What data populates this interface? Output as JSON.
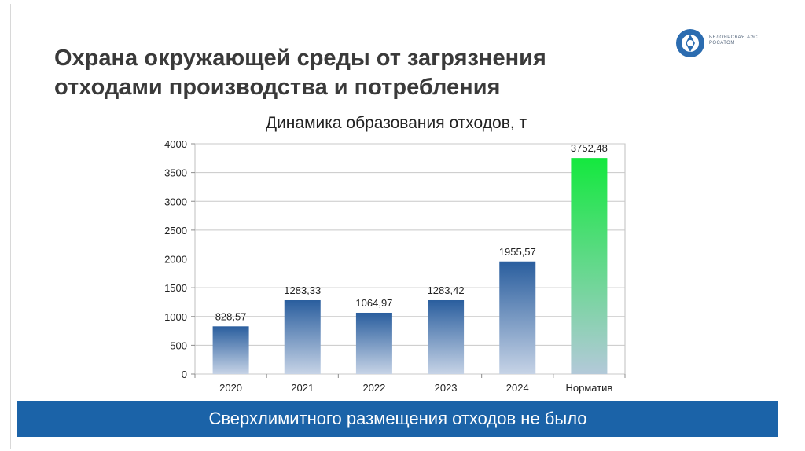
{
  "slide": {
    "title_line1": "Охрана окружающей среды от загрязнения",
    "title_line2": "отходами производства и потребления",
    "banner_text": "Сверхлимитного размещения отходов не было",
    "logo_text": "БЕЛОЯРСКАЯ АЭС РОСАТОМ"
  },
  "colors": {
    "banner": "#1b63a8",
    "bar_blue_top": "#2a5e9e",
    "bar_blue_bottom": "#c6d3e6",
    "bar_green_top": "#14e83e",
    "bar_green_bottom": "#b3c9d9"
  },
  "chart_data": {
    "type": "bar",
    "title": "Динамика образования отходов, т",
    "categories": [
      "2020",
      "2021",
      "2022",
      "2023",
      "2024",
      "Норматив"
    ],
    "values": [
      828.57,
      1283.33,
      1064.97,
      1283.42,
      1955.57,
      3752.48
    ],
    "value_labels": [
      "828,57",
      "1283,33",
      "1064,97",
      "1283,42",
      "1955,57",
      "3752,48"
    ],
    "ylim": [
      0,
      4000
    ],
    "yticks": [
      0,
      500,
      1000,
      1500,
      2000,
      2500,
      3000,
      3500,
      4000
    ],
    "grid": true,
    "highlight_category": "Норматив",
    "legend": "none"
  }
}
